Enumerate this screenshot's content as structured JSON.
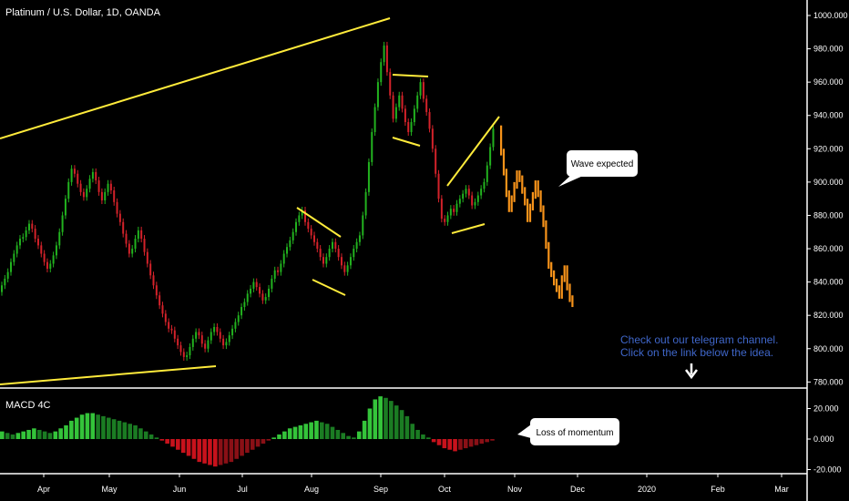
{
  "header": {
    "title": "Platinum / U.S. Dollar, 1D, OANDA"
  },
  "indicator": {
    "label": "MACD 4C"
  },
  "callouts": {
    "wave": "Wave expected",
    "momentum": "Loss of momentum"
  },
  "note": {
    "line1": "Check out our telegram channel.",
    "line2": "Click on the link below the idea.",
    "color": "#3f66c9"
  },
  "colors": {
    "background": "#000000",
    "up": "#22b21f",
    "down": "#d3222a",
    "projection": "#f7931a",
    "trendline": "#ffeb3b",
    "macd_up": "#34c43a",
    "macd_down": "#c8121c",
    "text": "#ffffff"
  },
  "chart_data": [
    {
      "type": "candlestick",
      "title": "Platinum / U.S. Dollar, 1D, OANDA",
      "y_ticks": [
        "1000.000",
        "980.000",
        "960.000",
        "940.000",
        "920.000",
        "900.000",
        "880.000",
        "860.000",
        "840.000",
        "820.000",
        "800.000",
        "780.000"
      ],
      "ylim": [
        778,
        1000
      ],
      "x_ticks": [
        "Apr",
        "May",
        "Jun",
        "Jul",
        "Aug",
        "Sep",
        "Oct",
        "Nov",
        "Dec",
        "2020",
        "Feb",
        "Mar"
      ],
      "series": [
        {
          "name": "Platinum / U.S. Dollar",
          "values": [
            838,
            842,
            846,
            852,
            857,
            862,
            866,
            867,
            871,
            875,
            872,
            866,
            862,
            857,
            852,
            848,
            851,
            856,
            862,
            870,
            880,
            890,
            900,
            908,
            905,
            899,
            894,
            891,
            896,
            902,
            906,
            901,
            894,
            889,
            894,
            899,
            895,
            888,
            881,
            876,
            869,
            863,
            857,
            860,
            866,
            871,
            866,
            858,
            851,
            844,
            838,
            832,
            826,
            821,
            816,
            812,
            811,
            806,
            802,
            798,
            795,
            796,
            801,
            806,
            810,
            808,
            803,
            800,
            805,
            810,
            813,
            810,
            806,
            802,
            804,
            808,
            812,
            816,
            820,
            825,
            828,
            833,
            836,
            840,
            837,
            833,
            829,
            831,
            836,
            842,
            847,
            846,
            851,
            857,
            861,
            865,
            870,
            876,
            880,
            883,
            876,
            872,
            868,
            864,
            860,
            855,
            851,
            855,
            860,
            864,
            860,
            855,
            850,
            846,
            850,
            855,
            860,
            864,
            868,
            880,
            894,
            912,
            930,
            945,
            960,
            972,
            982,
            966,
            952,
            938,
            945,
            952,
            944,
            936,
            930,
            936,
            944,
            952,
            960,
            950,
            942,
            932,
            920,
            905,
            890,
            878,
            876,
            880,
            884,
            882,
            887,
            890,
            893,
            896,
            892,
            886,
            888,
            892,
            896,
            900,
            910,
            921,
            932
          ]
        },
        {
          "name": "Wave expected",
          "values": [
            918,
            906,
            893,
            884,
            890,
            898,
            905,
            902,
            895,
            888,
            878,
            885,
            892,
            899,
            893,
            884,
            875,
            862,
            850,
            845,
            840,
            836,
            832,
            842,
            848,
            837,
            830,
            827
          ]
        }
      ],
      "annotations": [
        "Wave expected",
        "Check out our telegram channel.",
        "Click on the link below the idea."
      ]
    },
    {
      "type": "bar",
      "title": "MACD 4C",
      "y_ticks": [
        "20.000",
        "0.000",
        "-20.000"
      ],
      "ylim": [
        -20,
        28
      ],
      "x_ticks": [
        "Apr",
        "May",
        "Jun",
        "Jul",
        "Aug",
        "Sep",
        "Oct",
        "Nov",
        "Dec",
        "2020",
        "Feb",
        "Mar"
      ],
      "values": [
        5,
        4,
        3,
        4,
        5,
        6,
        7,
        6,
        5,
        4,
        5,
        7,
        9,
        12,
        14,
        16,
        17,
        17,
        16,
        15,
        14,
        13,
        12,
        11,
        10,
        9,
        7,
        5,
        3,
        1,
        -1,
        -3,
        -5,
        -7,
        -9,
        -11,
        -13,
        -15,
        -16,
        -17,
        -18,
        -17,
        -16,
        -15,
        -13,
        -11,
        -9,
        -7,
        -5,
        -3,
        -1,
        1,
        3,
        5,
        7,
        8,
        9,
        10,
        11,
        12,
        11,
        10,
        8,
        6,
        4,
        2,
        1,
        5,
        12,
        20,
        26,
        28,
        27,
        25,
        22,
        19,
        15,
        10,
        6,
        3,
        1,
        -2,
        -4,
        -6,
        -7,
        -8,
        -7,
        -6,
        -5,
        -4,
        -3,
        -2,
        -1
      ],
      "annotations": [
        "Loss of momentum"
      ]
    }
  ]
}
